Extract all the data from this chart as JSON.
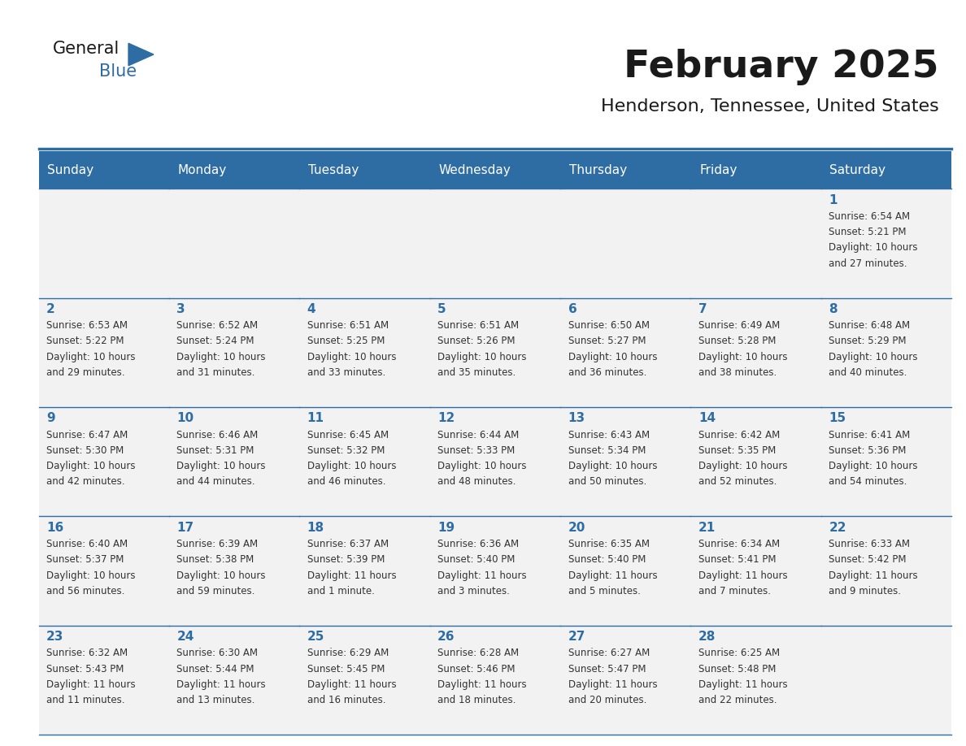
{
  "title": "February 2025",
  "subtitle": "Henderson, Tennessee, United States",
  "header_color": "#2E6DA4",
  "header_text_color": "#FFFFFF",
  "cell_bg_color": "#F2F2F2",
  "day_number_color": "#2E6DA4",
  "cell_text_color": "#333333",
  "grid_line_color": "#2E6DA4",
  "days_of_week": [
    "Sunday",
    "Monday",
    "Tuesday",
    "Wednesday",
    "Thursday",
    "Friday",
    "Saturday"
  ],
  "calendar_data": [
    [
      null,
      null,
      null,
      null,
      null,
      null,
      {
        "day": 1,
        "sunrise": "6:54 AM",
        "sunset": "5:21 PM",
        "daylight": "10 hours and 27 minutes."
      }
    ],
    [
      {
        "day": 2,
        "sunrise": "6:53 AM",
        "sunset": "5:22 PM",
        "daylight": "10 hours and 29 minutes."
      },
      {
        "day": 3,
        "sunrise": "6:52 AM",
        "sunset": "5:24 PM",
        "daylight": "10 hours and 31 minutes."
      },
      {
        "day": 4,
        "sunrise": "6:51 AM",
        "sunset": "5:25 PM",
        "daylight": "10 hours and 33 minutes."
      },
      {
        "day": 5,
        "sunrise": "6:51 AM",
        "sunset": "5:26 PM",
        "daylight": "10 hours and 35 minutes."
      },
      {
        "day": 6,
        "sunrise": "6:50 AM",
        "sunset": "5:27 PM",
        "daylight": "10 hours and 36 minutes."
      },
      {
        "day": 7,
        "sunrise": "6:49 AM",
        "sunset": "5:28 PM",
        "daylight": "10 hours and 38 minutes."
      },
      {
        "day": 8,
        "sunrise": "6:48 AM",
        "sunset": "5:29 PM",
        "daylight": "10 hours and 40 minutes."
      }
    ],
    [
      {
        "day": 9,
        "sunrise": "6:47 AM",
        "sunset": "5:30 PM",
        "daylight": "10 hours and 42 minutes."
      },
      {
        "day": 10,
        "sunrise": "6:46 AM",
        "sunset": "5:31 PM",
        "daylight": "10 hours and 44 minutes."
      },
      {
        "day": 11,
        "sunrise": "6:45 AM",
        "sunset": "5:32 PM",
        "daylight": "10 hours and 46 minutes."
      },
      {
        "day": 12,
        "sunrise": "6:44 AM",
        "sunset": "5:33 PM",
        "daylight": "10 hours and 48 minutes."
      },
      {
        "day": 13,
        "sunrise": "6:43 AM",
        "sunset": "5:34 PM",
        "daylight": "10 hours and 50 minutes."
      },
      {
        "day": 14,
        "sunrise": "6:42 AM",
        "sunset": "5:35 PM",
        "daylight": "10 hours and 52 minutes."
      },
      {
        "day": 15,
        "sunrise": "6:41 AM",
        "sunset": "5:36 PM",
        "daylight": "10 hours and 54 minutes."
      }
    ],
    [
      {
        "day": 16,
        "sunrise": "6:40 AM",
        "sunset": "5:37 PM",
        "daylight": "10 hours and 56 minutes."
      },
      {
        "day": 17,
        "sunrise": "6:39 AM",
        "sunset": "5:38 PM",
        "daylight": "10 hours and 59 minutes."
      },
      {
        "day": 18,
        "sunrise": "6:37 AM",
        "sunset": "5:39 PM",
        "daylight": "11 hours and 1 minute."
      },
      {
        "day": 19,
        "sunrise": "6:36 AM",
        "sunset": "5:40 PM",
        "daylight": "11 hours and 3 minutes."
      },
      {
        "day": 20,
        "sunrise": "6:35 AM",
        "sunset": "5:40 PM",
        "daylight": "11 hours and 5 minutes."
      },
      {
        "day": 21,
        "sunrise": "6:34 AM",
        "sunset": "5:41 PM",
        "daylight": "11 hours and 7 minutes."
      },
      {
        "day": 22,
        "sunrise": "6:33 AM",
        "sunset": "5:42 PM",
        "daylight": "11 hours and 9 minutes."
      }
    ],
    [
      {
        "day": 23,
        "sunrise": "6:32 AM",
        "sunset": "5:43 PM",
        "daylight": "11 hours and 11 minutes."
      },
      {
        "day": 24,
        "sunrise": "6:30 AM",
        "sunset": "5:44 PM",
        "daylight": "11 hours and 13 minutes."
      },
      {
        "day": 25,
        "sunrise": "6:29 AM",
        "sunset": "5:45 PM",
        "daylight": "11 hours and 16 minutes."
      },
      {
        "day": 26,
        "sunrise": "6:28 AM",
        "sunset": "5:46 PM",
        "daylight": "11 hours and 18 minutes."
      },
      {
        "day": 27,
        "sunrise": "6:27 AM",
        "sunset": "5:47 PM",
        "daylight": "11 hours and 20 minutes."
      },
      {
        "day": 28,
        "sunrise": "6:25 AM",
        "sunset": "5:48 PM",
        "daylight": "11 hours and 22 minutes."
      },
      null
    ]
  ],
  "logo_general_color": "#1a1a1a",
  "logo_blue_color": "#2E6DA4",
  "logo_triangle_color": "#2E6DA4"
}
